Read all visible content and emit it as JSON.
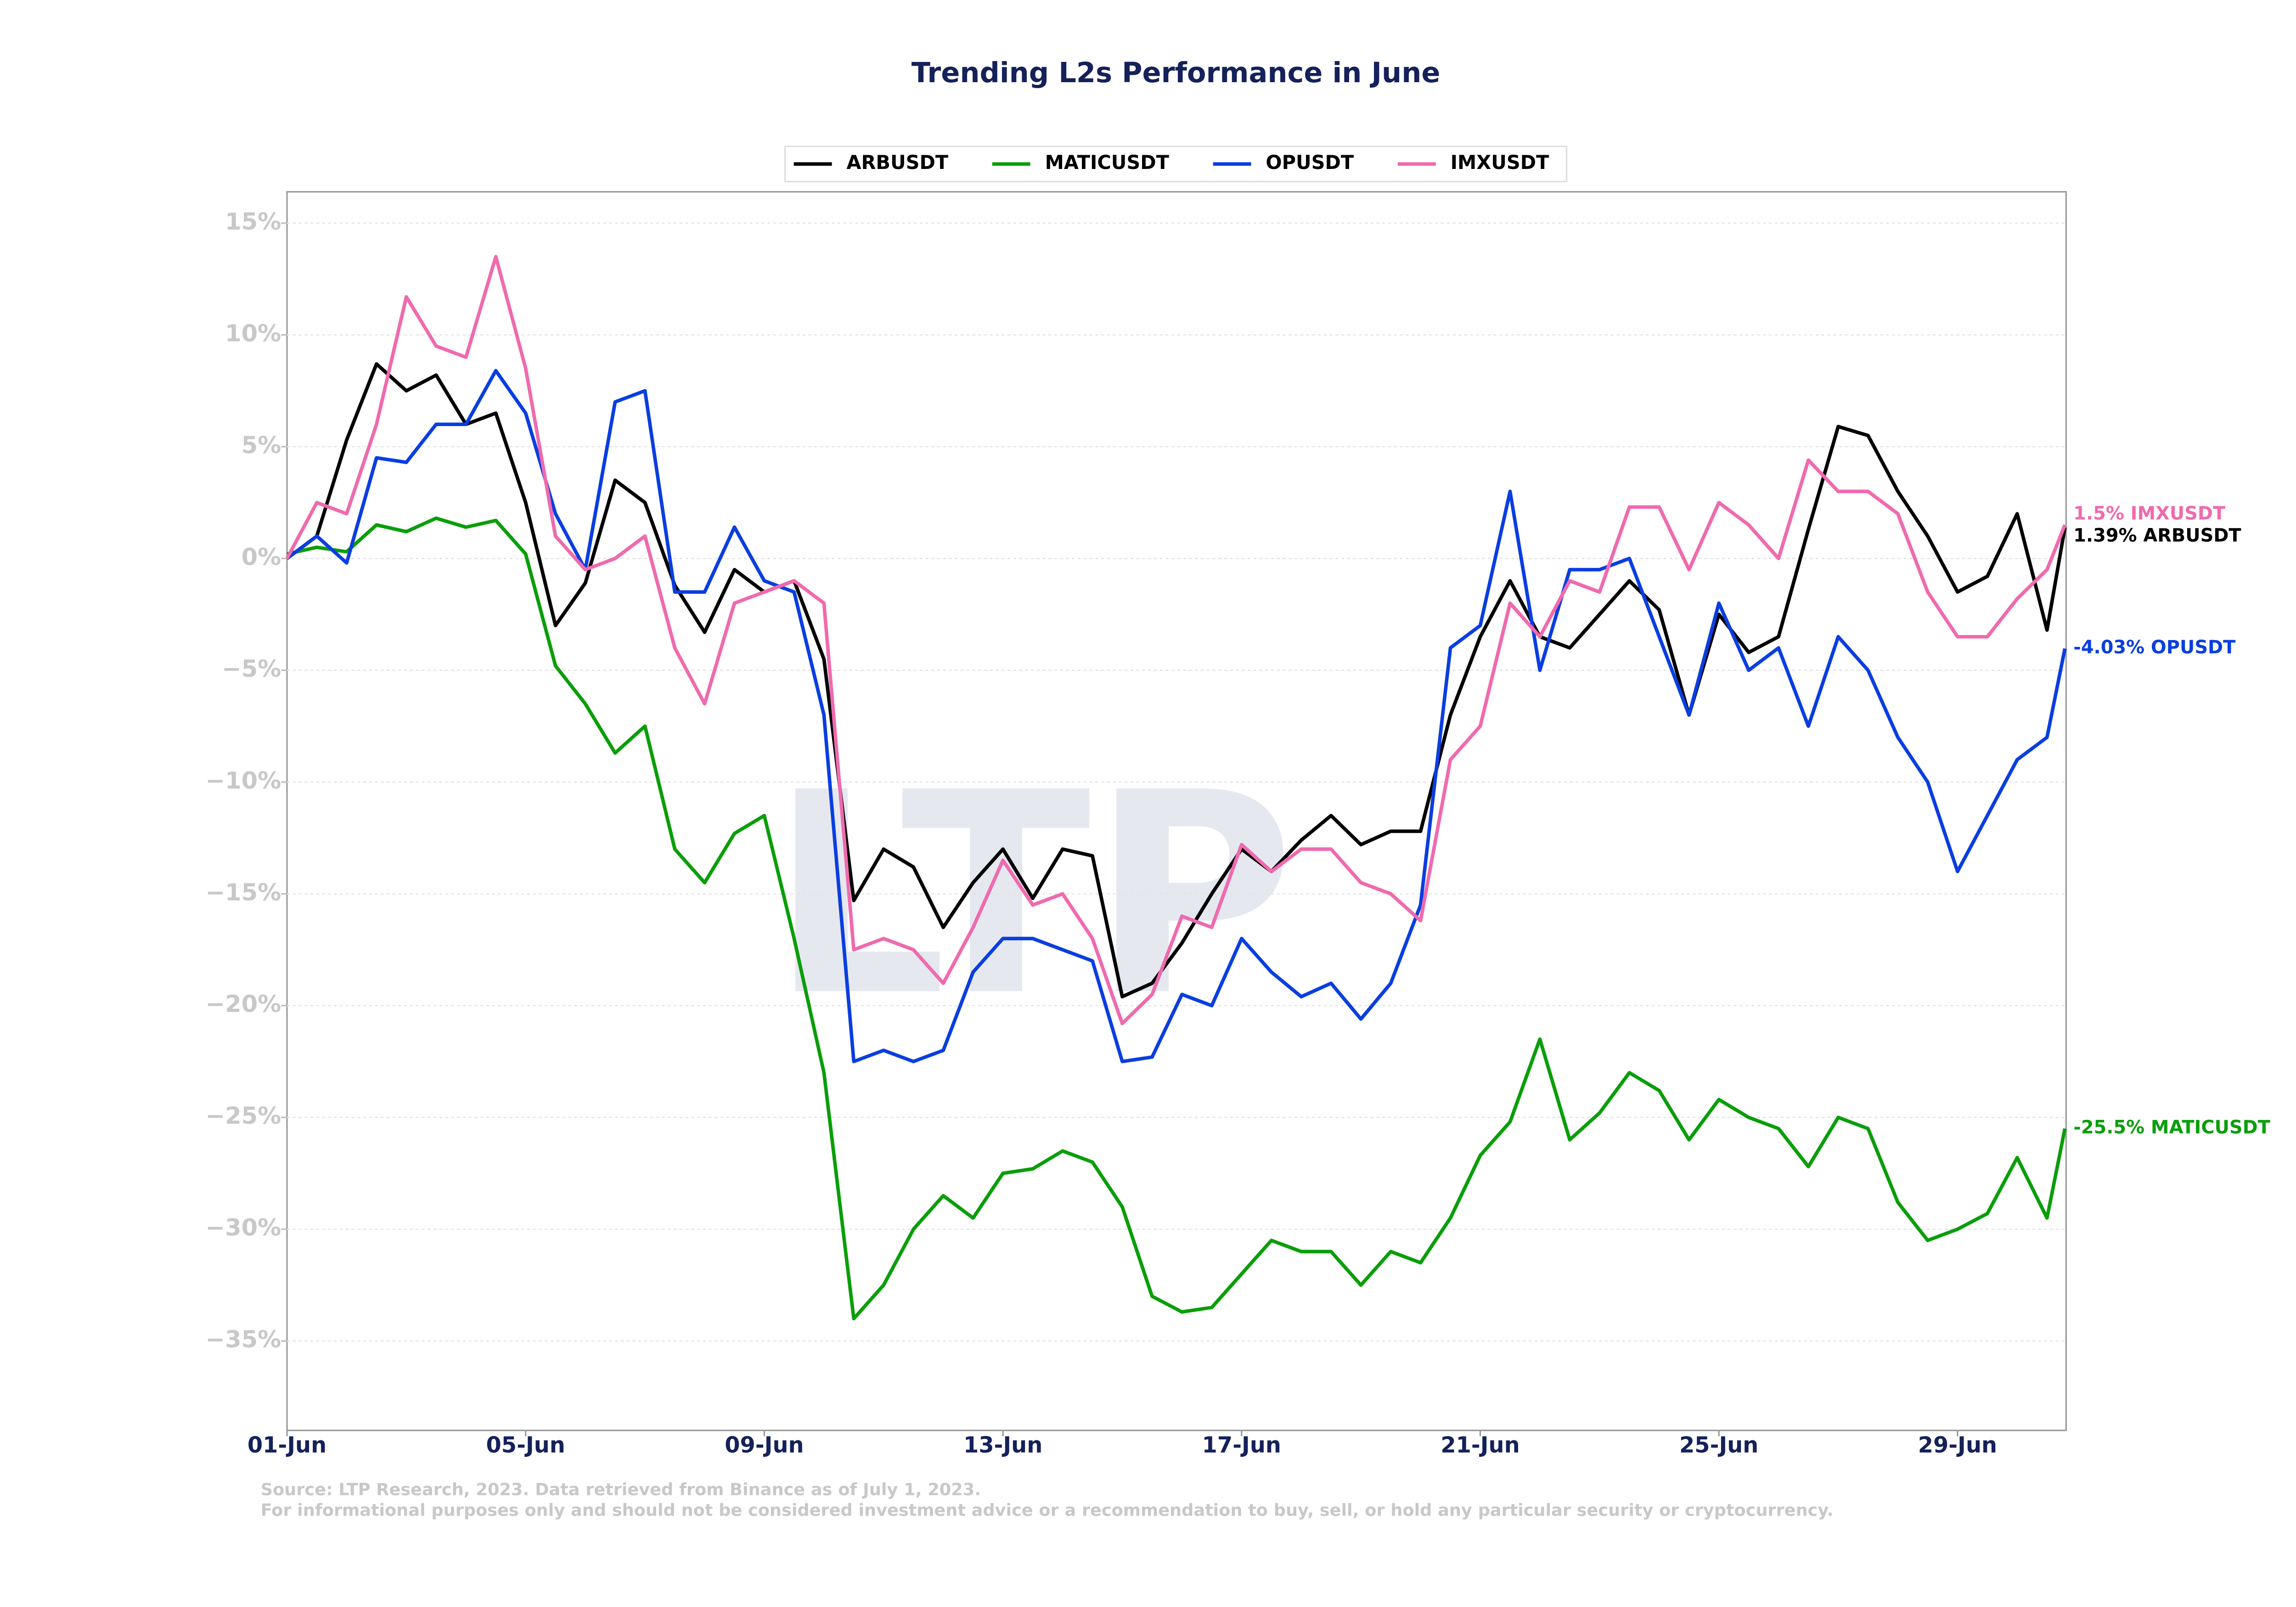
{
  "chart_data": {
    "type": "line",
    "title": "Trending L2s Performance in June",
    "watermark": "LTP",
    "notes": [
      "Source: LTP Research, 2023. Data retrieved from Binance as of July 1, 2023.",
      "For informational purposes only and should not be considered investment advice or a recommendation to buy, sell, or hold any particular security or cryptocurrency."
    ],
    "x": [
      1,
      1.5,
      2,
      2.5,
      3,
      3.5,
      4,
      4.5,
      5,
      5.5,
      6,
      6.5,
      7,
      7.5,
      8,
      8.5,
      9,
      9.5,
      10,
      10.5,
      11,
      11.5,
      12,
      12.5,
      13,
      13.5,
      14,
      14.5,
      15,
      15.5,
      16,
      16.5,
      17,
      17.5,
      18,
      18.5,
      19,
      19.5,
      20,
      20.5,
      21,
      21.5,
      22,
      22.5,
      23,
      23.5,
      24,
      24.5,
      25,
      25.5,
      26,
      26.5,
      27,
      27.5,
      28,
      28.5,
      29,
      29.5,
      30,
      30.5,
      30.8
    ],
    "xlim": [
      1,
      30.82
    ],
    "xticks": [
      {
        "value": 1,
        "label": "01-Jun"
      },
      {
        "value": 5,
        "label": "05-Jun"
      },
      {
        "value": 9,
        "label": "09-Jun"
      },
      {
        "value": 13,
        "label": "13-Jun"
      },
      {
        "value": 17,
        "label": "17-Jun"
      },
      {
        "value": 21,
        "label": "21-Jun"
      },
      {
        "value": 25,
        "label": "25-Jun"
      },
      {
        "value": 29,
        "label": "29-Jun"
      }
    ],
    "ylim": [
      -39,
      16.4
    ],
    "yticks": [
      {
        "value": -35,
        "label": "−35%"
      },
      {
        "value": -30,
        "label": "−30%"
      },
      {
        "value": -25,
        "label": "−25%"
      },
      {
        "value": -20,
        "label": "−20%"
      },
      {
        "value": -15,
        "label": "−15%"
      },
      {
        "value": -10,
        "label": "−10%"
      },
      {
        "value": -5,
        "label": "−5%"
      },
      {
        "value": 0,
        "label": "0%"
      },
      {
        "value": 5,
        "label": "5%"
      },
      {
        "value": 10,
        "label": "10%"
      },
      {
        "value": 15,
        "label": "15%"
      }
    ],
    "grid": true,
    "legend": "top",
    "series": [
      {
        "name": "ARBUSDT",
        "color": "#000000",
        "end_label": "1.39% ARBUSDT",
        "values": [
          0,
          1,
          5.3,
          8.7,
          7.5,
          8.2,
          6,
          6.5,
          2.5,
          -3,
          -1.1,
          3.5,
          2.5,
          -1.2,
          -3.3,
          -0.5,
          -1.5,
          -1,
          -4.5,
          -15.3,
          -13,
          -13.8,
          -16.5,
          -14.5,
          -13,
          -15.2,
          -13,
          -13.3,
          -19.6,
          -19,
          -17.2,
          -15,
          -13,
          -14,
          -12.6,
          -11.5,
          -12.8,
          -12.2,
          -12.2,
          -7,
          -3.5,
          -1,
          -3.5,
          -4,
          -2.5,
          -1,
          -2.3,
          -7,
          -2.5,
          -4.2,
          -3.5,
          1.3,
          5.9,
          5.5,
          3,
          1,
          -1.5,
          -0.8,
          2,
          -3.2,
          1.39
        ]
      },
      {
        "name": "MATICUSDT",
        "color": "#0a9e0a",
        "end_label": "-25.5% MATICUSDT",
        "values": [
          0.2,
          0.5,
          0.3,
          1.5,
          1.2,
          1.8,
          1.4,
          1.7,
          0.2,
          -4.8,
          -6.5,
          -8.7,
          -7.5,
          -13,
          -14.5,
          -12.3,
          -11.5,
          -17,
          -23,
          -34,
          -32.5,
          -30,
          -28.5,
          -29.5,
          -27.5,
          -27.3,
          -26.5,
          -27,
          -29,
          -33,
          -33.7,
          -33.5,
          -32,
          -30.5,
          -31,
          -31,
          -32.5,
          -31,
          -31.5,
          -29.5,
          -26.7,
          -25.2,
          -21.5,
          -26,
          -24.8,
          -23,
          -23.8,
          -26,
          -24.2,
          -25,
          -25.5,
          -27.2,
          -25,
          -25.5,
          -28.8,
          -30.5,
          -30,
          -29.3,
          -26.8,
          -29.5,
          -25.5
        ]
      },
      {
        "name": "OPUSDT",
        "color": "#0a3ee0",
        "end_label": "-4.03% OPUSDT",
        "values": [
          0,
          1,
          -0.2,
          4.5,
          4.3,
          6,
          6,
          8.4,
          6.5,
          2,
          -0.5,
          7,
          7.5,
          -1.5,
          -1.5,
          1.4,
          -1,
          -1.5,
          -7,
          -22.5,
          -22,
          -22.5,
          -22,
          -18.5,
          -17,
          -17,
          -17.5,
          -18,
          -22.5,
          -22.3,
          -19.5,
          -20,
          -17,
          -18.5,
          -19.6,
          -19,
          -20.6,
          -19,
          -15.5,
          -4,
          -3,
          3,
          -5,
          -0.5,
          -0.5,
          0,
          -3.5,
          -7,
          -2,
          -5,
          -4,
          -7.5,
          -3.5,
          -5,
          -8,
          -10,
          -14,
          -11.5,
          -9,
          -8,
          -4.03
        ]
      },
      {
        "name": "IMXUSDT",
        "color": "#ef6aae",
        "end_label": "1.5% IMXUSDT",
        "values": [
          0,
          2.5,
          2,
          6,
          11.7,
          9.5,
          9,
          13.5,
          8.5,
          1,
          -0.5,
          0,
          1,
          -4,
          -6.5,
          -2,
          -1.5,
          -1,
          -2,
          -17.5,
          -17,
          -17.5,
          -19,
          -16.5,
          -13.5,
          -15.5,
          -15,
          -17,
          -20.8,
          -19.5,
          -16,
          -16.5,
          -12.8,
          -14,
          -13,
          -13,
          -14.5,
          -15,
          -16.2,
          -9,
          -7.5,
          -2,
          -3.5,
          -1,
          -1.5,
          2.3,
          2.3,
          -0.5,
          2.5,
          1.5,
          0,
          4.4,
          3,
          3,
          2,
          -1.5,
          -3.5,
          -3.5,
          -1.8,
          -0.5,
          1.5
        ]
      }
    ]
  }
}
